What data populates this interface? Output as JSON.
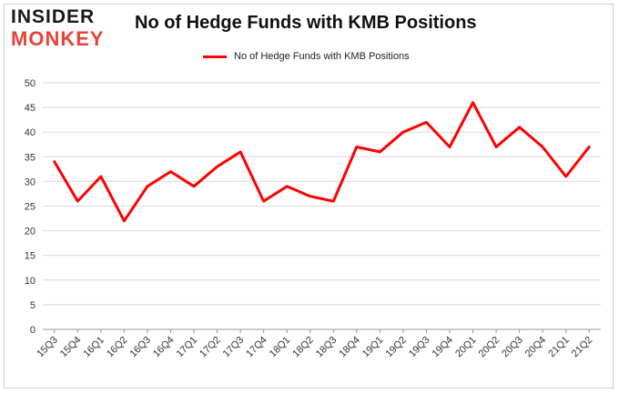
{
  "logo": {
    "top": "INSIDER",
    "bottom": "MONKEY"
  },
  "chart_data": {
    "type": "line",
    "title": "No of Hedge Funds with KMB Positions",
    "xlabel": "",
    "ylabel": "",
    "categories": [
      "15Q3",
      "15Q4",
      "16Q1",
      "16Q2",
      "16Q3",
      "16Q4",
      "17Q1",
      "17Q2",
      "17Q3",
      "17Q4",
      "18Q1",
      "18Q2",
      "18Q3",
      "18Q4",
      "19Q1",
      "19Q2",
      "19Q3",
      "19Q4",
      "20Q1",
      "20Q2",
      "20Q3",
      "20Q4",
      "21Q1",
      "21Q2"
    ],
    "series": [
      {
        "name": "No of Hedge Funds with KMB Positions",
        "values": [
          34,
          26,
          31,
          22,
          29,
          32,
          29,
          33,
          36,
          26,
          29,
          27,
          26,
          37,
          36,
          40,
          42,
          37,
          46,
          37,
          41,
          37,
          31,
          37
        ]
      }
    ],
    "ylim": [
      0,
      50
    ],
    "yticks": [
      0,
      5,
      10,
      15,
      20,
      25,
      30,
      35,
      40,
      45,
      50
    ],
    "grid": true,
    "legend": "top-center",
    "colors": {
      "line": "#ff0000",
      "grid": "#d9d9d9",
      "axis": "#999999"
    }
  }
}
